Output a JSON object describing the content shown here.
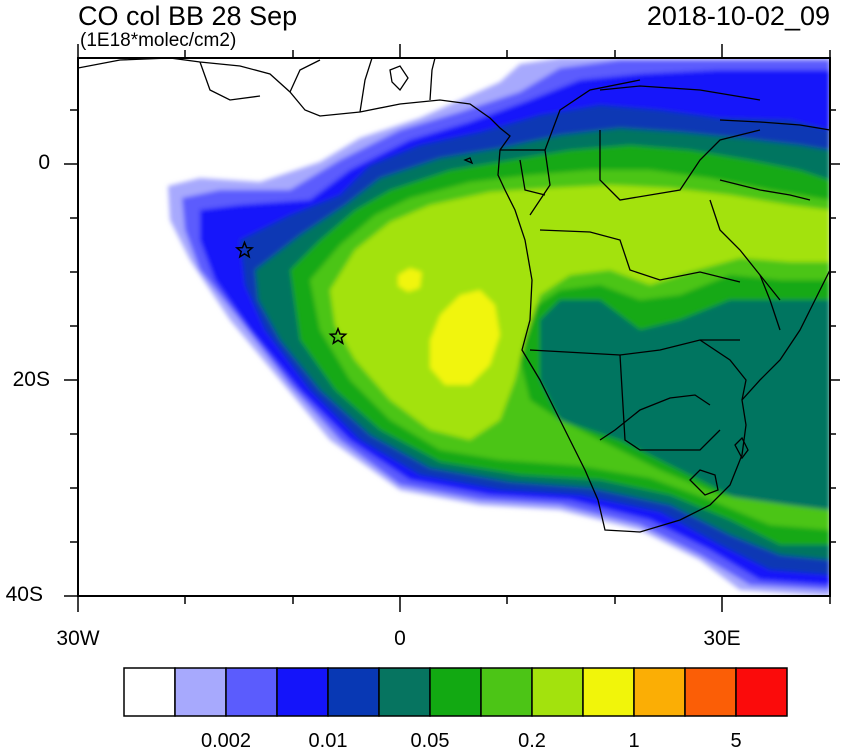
{
  "title": "CO col BB 28 Sep",
  "units": "(1E18*molec/cm2)",
  "timestamp": "2018-10-02_09",
  "lat_labels": [
    "0",
    "20S",
    "40S"
  ],
  "lon_labels": [
    "30W",
    "0",
    "30E"
  ],
  "colorbar": {
    "colors": [
      "#ffffff",
      "#a7a9fd",
      "#5b5cfd",
      "#1414fa",
      "#0838b4",
      "#067460",
      "#12a912",
      "#4cc516",
      "#a3e20d",
      "#f1f50a",
      "#fbae05",
      "#fb5e06",
      "#fb0b0b"
    ],
    "labels": [
      "0.002",
      "0.01",
      "0.05",
      "0.2",
      "1",
      "5"
    ]
  },
  "markers": [
    {
      "name": "star-marker",
      "lon": -14.5,
      "lat": -8.0
    },
    {
      "name": "star-marker",
      "lon": -5.8,
      "lat": -16.0
    }
  ]
}
